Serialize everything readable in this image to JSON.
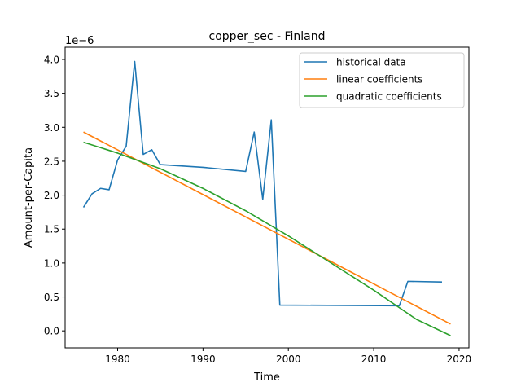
{
  "chart_data": {
    "type": "line",
    "title": "copper_sec - Finland",
    "xlabel": "Time",
    "ylabel": "Amount-per-Capita",
    "offset_text": "1e−6",
    "y_scale": 1e-06,
    "xlim": [
      1973.85,
      2021.15
    ],
    "ylim": [
      -0.25,
      4.18
    ],
    "x_ticks": [
      1980,
      1990,
      2000,
      2010,
      2020
    ],
    "y_ticks": [
      0.0,
      0.5,
      1.0,
      1.5,
      2.0,
      2.5,
      3.0,
      3.5,
      4.0
    ],
    "y_tick_labels": [
      "0.0",
      "0.5",
      "1.0",
      "1.5",
      "2.0",
      "2.5",
      "3.0",
      "3.5",
      "4.0"
    ],
    "legend_position": "top-right",
    "grid": false,
    "series": [
      {
        "name": "historical data",
        "color": "#1f77b4",
        "x": [
          1976,
          1977,
          1978,
          1979,
          1980,
          1981,
          1982,
          1983,
          1984,
          1985,
          1990,
          1995,
          1996,
          1997,
          1998,
          1999,
          2013,
          2014,
          2018
        ],
        "y": [
          1.82,
          2.02,
          2.1,
          2.08,
          2.52,
          2.72,
          3.97,
          2.6,
          2.67,
          2.45,
          2.41,
          2.35,
          2.93,
          1.94,
          3.11,
          0.38,
          0.37,
          0.73,
          0.72
        ]
      },
      {
        "name": "linear coefficients",
        "color": "#ff7f0e",
        "x": [
          1976,
          2019
        ],
        "y": [
          2.93,
          0.1
        ]
      },
      {
        "name": "quadratic coefficients",
        "color": "#2ca02c",
        "x": [
          1976,
          1980,
          1985,
          1990,
          1995,
          2000,
          2005,
          2010,
          2015,
          2019
        ],
        "y": [
          2.78,
          2.62,
          2.39,
          2.1,
          1.77,
          1.4,
          1.0,
          0.6,
          0.17,
          -0.07
        ]
      }
    ]
  }
}
